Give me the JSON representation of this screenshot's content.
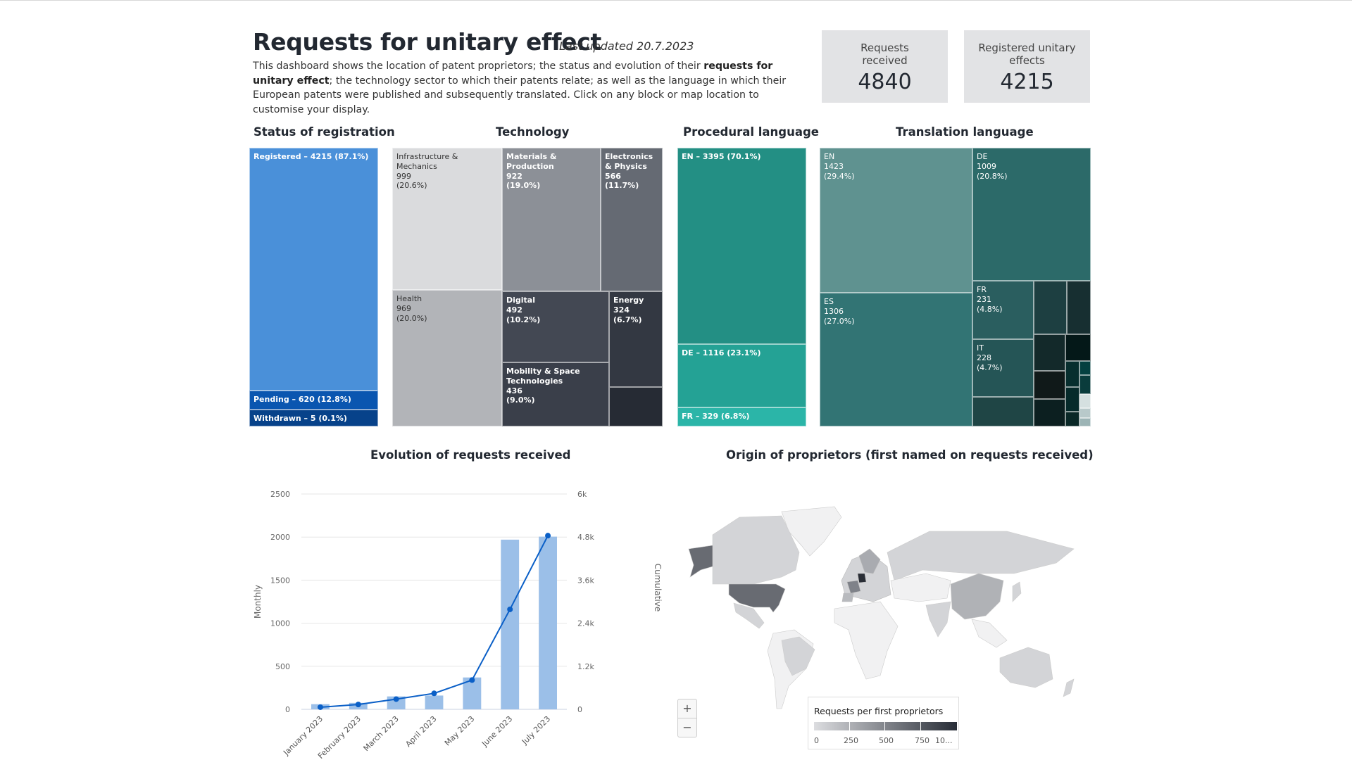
{
  "header": {
    "title": "Requests for unitary effect",
    "last_updated": "Last updated 20.7.2023",
    "description_parts": [
      "This dashboard shows the location of patent proprietors; the status and evolution of their ",
      "requests for unitary effect",
      "; the technology sector to which their patents relate; as well as the language in which their European patents were published and subsequently translated. Click on any block or map location to customise your display."
    ]
  },
  "kpis": [
    {
      "label": "Requests received",
      "value": "4840"
    },
    {
      "label": "Registered unitary effects",
      "value": "4215"
    }
  ],
  "status": {
    "title": "Status of registration",
    "items": [
      {
        "label": "Registered – 4215 (87.1%)",
        "value": 4215,
        "color": "#4a90d9"
      },
      {
        "label": "Pending – 620 (12.8%)",
        "value": 620,
        "color": "#0a56b0"
      },
      {
        "label": "Withdrawn – 5 (0.1%)",
        "value": 5,
        "color": "#07428a"
      }
    ]
  },
  "technology": {
    "title": "Technology",
    "items": [
      {
        "name": "Infrastructure & Mechanics",
        "value": "999",
        "pct": "(20.6%)",
        "color": "#dadbdd"
      },
      {
        "name": "Materials & Production",
        "value": "922",
        "pct": "(19.0%)",
        "color": "#8c9097"
      },
      {
        "name": "Electronics & Physics",
        "value": "566",
        "pct": "(11.7%)",
        "color": "#656a73"
      },
      {
        "name": "Health",
        "value": "969",
        "pct": "(20.0%)",
        "color": "#b2b4b8"
      },
      {
        "name": "Digital",
        "value": "492",
        "pct": "(10.2%)",
        "color": "#434853"
      },
      {
        "name": "Mobility & Space Technologies",
        "value": "436",
        "pct": "(9.0%)",
        "color": "#3a3f4a"
      },
      {
        "name": "Energy",
        "value": "324",
        "pct": "(6.7%)",
        "color": "#333842"
      },
      {
        "name": "",
        "value": "",
        "pct": "",
        "color": "#262b34"
      }
    ]
  },
  "procedural": {
    "title": "Procedural language",
    "items": [
      {
        "label": "EN – 3395 (70.1%)",
        "color": "#238f84"
      },
      {
        "label": "DE – 1116 (23.1%)",
        "color": "#24a295"
      },
      {
        "label": "FR – 329 (6.8%)",
        "color": "#2bb5a8"
      }
    ]
  },
  "translation": {
    "title": "Translation language",
    "items": [
      {
        "name": "EN",
        "value": "1423",
        "pct": "(29.4%)",
        "color": "#5f9290"
      },
      {
        "name": "DE",
        "value": "1009",
        "pct": "(20.8%)",
        "color": "#2c6a69"
      },
      {
        "name": "ES",
        "value": "1306",
        "pct": "(27.0%)",
        "color": "#327474"
      },
      {
        "name": "FR",
        "value": "231",
        "pct": "(4.8%)",
        "color": "#2a5e5f"
      },
      {
        "name": "IT",
        "value": "228",
        "pct": "(4.7%)",
        "color": "#255556"
      }
    ],
    "small_colors": [
      "#1d3f41",
      "#172f31",
      "#13292a",
      "#0c1f20",
      "#101919",
      "#041818",
      "#072e2e",
      "#062a2a",
      "#0a2827",
      "#044040",
      "#d5e0e0",
      "#b8c9ca",
      "#9cb4b5",
      "#234547"
    ]
  },
  "evolution": {
    "title": "Evolution of requests received"
  },
  "chart_data": {
    "type": "bar",
    "title": "Evolution of requests received",
    "categories": [
      "January 2023",
      "February 2023",
      "March 2023",
      "April 2023",
      "May 2023",
      "June 2023",
      "July 2023"
    ],
    "series": [
      {
        "name": "Monthly",
        "type": "bar",
        "axis": "left",
        "color": "#9bbfe8",
        "values": [
          60,
          75,
          150,
          160,
          370,
          1970,
          2005
        ]
      },
      {
        "name": "Cumulative",
        "type": "line",
        "axis": "right",
        "color": "#0a5fc7",
        "values": [
          60,
          135,
          285,
          445,
          815,
          2785,
          4840
        ]
      }
    ],
    "ylabel": "Monthly",
    "y2label": "Cumulative",
    "ylim": [
      0,
      2500
    ],
    "y2lim": [
      0,
      6000
    ],
    "yticks": [
      "0",
      "500",
      "1000",
      "1500",
      "2000",
      "2500"
    ],
    "y2ticks": [
      "0",
      "1.2k",
      "2.4k",
      "3.6k",
      "4.8k",
      "6k"
    ],
    "grid": true
  },
  "map": {
    "title": "Origin of proprietors (first named on requests received)",
    "zoom_in": "+",
    "zoom_out": "−",
    "legend_title": "Requests per first proprietors",
    "legend_ticks": [
      "0",
      "250",
      "500",
      "750",
      "10..."
    ],
    "countries": [
      {
        "name": "Germany",
        "shade": "#2a2e36"
      },
      {
        "name": "United States",
        "shade": "#686b72"
      },
      {
        "name": "France",
        "shade": "#7f8289"
      },
      {
        "name": "China",
        "shade": "#b0b2b6"
      },
      {
        "name": "Other",
        "shade": "#d4d5d8"
      }
    ]
  }
}
